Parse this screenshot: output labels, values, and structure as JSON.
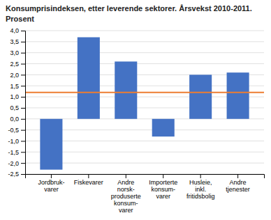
{
  "chart_data": {
    "type": "bar",
    "title": "Konsumprisindeksen, etter leverende sektorer. Årsvekst 2010-2011.",
    "subtitle": "Prosent",
    "categories": [
      "Jordbruk-\nvarer",
      "Fiskevarer",
      "Andre\nnorsk-\nproduserte\nkonsum-\nvarer",
      "Importerte\nkonsum-\nvarer",
      "Husleie,\ninkl.\nfritidsbolig",
      "Andre\ntjenester"
    ],
    "values": [
      -2.3,
      3.7,
      2.6,
      -0.8,
      2.0,
      2.1
    ],
    "color": "#4472C4",
    "reference_line": {
      "value": 1.2,
      "color": "#ED7D31"
    },
    "ylim": [
      -2.5,
      4.0
    ],
    "yticks": [
      {
        "value": -2.5,
        "label": "-2,5"
      },
      {
        "value": -2.0,
        "label": "-2,0"
      },
      {
        "value": -1.5,
        "label": "-1,5"
      },
      {
        "value": -1.0,
        "label": "-1,0"
      },
      {
        "value": -0.5,
        "label": "-0,5"
      },
      {
        "value": 0.0,
        "label": "0,0"
      },
      {
        "value": 0.5,
        "label": "0,5"
      },
      {
        "value": 1.0,
        "label": "1,0"
      },
      {
        "value": 1.5,
        "label": "1,5"
      },
      {
        "value": 2.0,
        "label": "2,0"
      },
      {
        "value": 2.5,
        "label": "2,5"
      },
      {
        "value": 3.0,
        "label": "3,0"
      },
      {
        "value": 3.5,
        "label": "3,5"
      },
      {
        "value": 4.0,
        "label": "4,0"
      }
    ],
    "grid": true
  }
}
